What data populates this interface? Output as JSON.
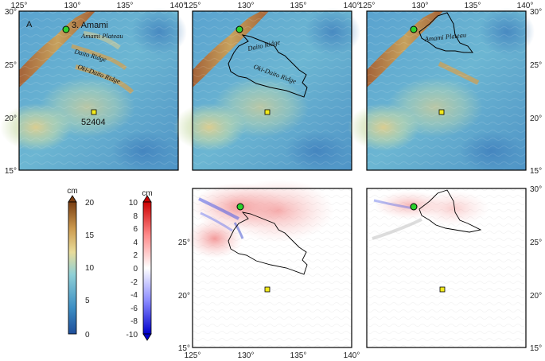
{
  "panel_letter": "A",
  "station_name": "3. Amami",
  "buoy_id": "52404",
  "features": {
    "amami_plateau": "Amami Plateau",
    "daito_ridge": "Daito Ridge",
    "oki_daito_ridge": "Oki-Daito Ridge"
  },
  "axes": {
    "lon_ticks": [
      "125°",
      "130°",
      "135°",
      "140°"
    ],
    "lat_ticks": [
      "15°",
      "20°",
      "25°",
      "30°"
    ]
  },
  "colorbar_depth": {
    "unit": "cm",
    "ticks": [
      "0",
      "5",
      "10",
      "15",
      "20"
    ],
    "colors": [
      "#1f4e9a",
      "#3d8fc4",
      "#8fd0d6",
      "#e8dc9a",
      "#cc9a4e",
      "#7a3e12"
    ]
  },
  "colorbar_diff": {
    "unit": "cm",
    "ticks": [
      "-10",
      "-8",
      "-6",
      "-4",
      "-2",
      "0",
      "2",
      "4",
      "6",
      "8",
      "10"
    ],
    "colors": [
      "#0000cc",
      "#8a8aff",
      "#ffffff",
      "#ff8a8a",
      "#cc0000"
    ]
  },
  "map_extent": {
    "lon": [
      125,
      140
    ],
    "lat": [
      15,
      30
    ]
  }
}
